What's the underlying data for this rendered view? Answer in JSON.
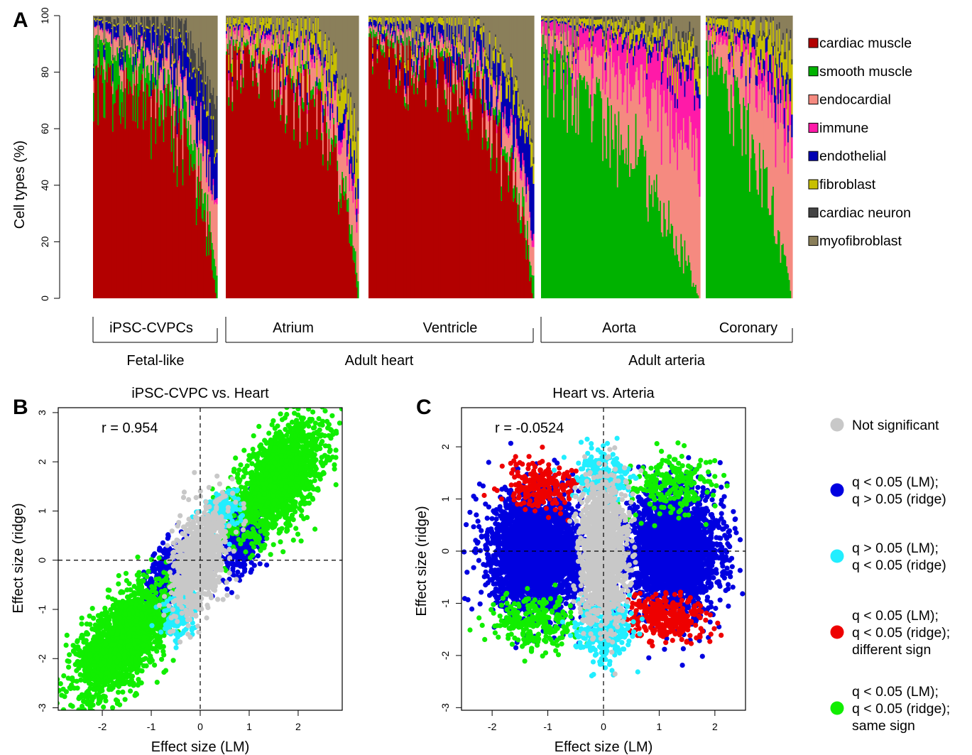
{
  "chart_data": [
    {
      "panel": "A",
      "type": "bar",
      "variant": "stacked-100",
      "title": "",
      "ylabel": "Cell types (%)",
      "xlabel": "",
      "ylim": [
        0,
        100
      ],
      "yticks": [
        0,
        20,
        40,
        60,
        80,
        100
      ],
      "legend_position": "right",
      "series": [
        {
          "name": "cardiac muscle",
          "color": "#b30000"
        },
        {
          "name": "smooth muscle",
          "color": "#00b200"
        },
        {
          "name": "endocardial",
          "color": "#f58a80"
        },
        {
          "name": "immune",
          "color": "#ff1aa8"
        },
        {
          "name": "endothelial",
          "color": "#0000b3"
        },
        {
          "name": "fibroblast",
          "color": "#c8c000"
        },
        {
          "name": "cardiac neuron",
          "color": "#444444"
        },
        {
          "name": "myofibroblast",
          "color": "#8a7f5a"
        }
      ],
      "groups": [
        {
          "label": "iPSC-CVPCs",
          "samples": 110,
          "cardiac_muscle_range": [
            80,
            0
          ],
          "smooth_muscle_range": [
            13,
            5
          ],
          "endocardial_range": [
            3,
            12
          ],
          "immune_range": [
            0.5,
            1
          ],
          "endothelial_range": [
            2,
            12
          ],
          "fibroblast_range": [
            0.5,
            1
          ],
          "cardiac_neuron_range": [
            0.8,
            8
          ]
        },
        {
          "label": "Atrium",
          "samples": 110,
          "cardiac_muscle_range": [
            87,
            0
          ],
          "smooth_muscle_range": [
            2,
            3
          ],
          "endocardial_range": [
            4,
            10
          ],
          "immune_range": [
            1.5,
            2.5
          ],
          "endothelial_range": [
            1,
            4
          ],
          "fibroblast_range": [
            3,
            8
          ],
          "cardiac_neuron_range": [
            0.3,
            0.8
          ]
        },
        {
          "label": "Ventricle",
          "samples": 140,
          "cardiac_muscle_range": [
            90,
            0
          ],
          "smooth_muscle_range": [
            2,
            3
          ],
          "endocardial_range": [
            1.5,
            8
          ],
          "immune_range": [
            0.5,
            2
          ],
          "endothelial_range": [
            2,
            10
          ],
          "fibroblast_range": [
            1.5,
            4
          ],
          "cardiac_neuron_range": [
            0.2,
            0.8
          ]
        },
        {
          "label": "Aorta",
          "samples": 130,
          "cardiac_muscle_range": [
            0,
            0
          ],
          "smooth_muscle_range": [
            87,
            0
          ],
          "endocardial_range": [
            4,
            40
          ],
          "immune_range": [
            4,
            20
          ],
          "endothelial_range": [
            0.5,
            4
          ],
          "fibroblast_range": [
            1,
            6
          ],
          "cardiac_neuron_range": [
            0.5,
            3
          ]
        },
        {
          "label": "Coronary",
          "samples": 70,
          "cardiac_muscle_range": [
            0,
            0
          ],
          "smooth_muscle_range": [
            85,
            0
          ],
          "endocardial_range": [
            4,
            40
          ],
          "immune_range": [
            2,
            10
          ],
          "endothelial_range": [
            1,
            6
          ],
          "fibroblast_range": [
            3,
            10
          ],
          "cardiac_neuron_range": [
            0.5,
            2
          ]
        }
      ],
      "group_axis": {
        "tier1": [
          {
            "label": "iPSC-CVPCs",
            "from": 0,
            "to": 0
          },
          {
            "label": "Atrium",
            "from": 1,
            "to": 2
          },
          {
            "label": "Ventricle",
            "from": 1,
            "to": 2
          },
          {
            "label": "Aorta",
            "from": 3,
            "to": 4
          },
          {
            "label": "Coronary",
            "from": 3,
            "to": 4
          }
        ],
        "tier2": [
          {
            "label": "Fetal-like"
          },
          {
            "label": "Adult heart"
          },
          {
            "label": "Adult arteria"
          }
        ]
      }
    },
    {
      "panel": "B",
      "type": "scatter",
      "title": "iPSC-CVPC vs. Heart",
      "xlabel": "Effect size (LM)",
      "ylabel": "Effect size (ridge)",
      "xlim": [
        -2.9,
        2.9
      ],
      "ylim": [
        -3.05,
        3.1
      ],
      "xticks": [
        -2,
        -1,
        0,
        1,
        2
      ],
      "yticks": [
        -3,
        -2,
        -1,
        0,
        1,
        2,
        3
      ],
      "annotation": "r = 0.954",
      "reference_lines": [
        {
          "axis": "x",
          "value": 0
        },
        {
          "axis": "y",
          "value": 0
        }
      ],
      "clusters": [
        {
          "category": "same sign",
          "center": [
            1.6,
            1.65
          ],
          "spread": [
            0.45,
            0.45
          ],
          "slope": 0.7,
          "n": 1800
        },
        {
          "category": "same sign",
          "center": [
            -1.6,
            -1.65
          ],
          "spread": [
            0.45,
            0.45
          ],
          "slope": 0.7,
          "n": 1800
        },
        {
          "category": "not significant",
          "center": [
            0.0,
            0.0
          ],
          "spread": [
            0.28,
            0.5
          ],
          "slope": 0.9,
          "n": 900
        },
        {
          "category": "lm only",
          "center": [
            -0.7,
            -0.4
          ],
          "spread": [
            0.22,
            0.35
          ],
          "slope": 0.9,
          "n": 400
        },
        {
          "category": "lm only",
          "center": [
            0.9,
            0.5
          ],
          "spread": [
            0.22,
            0.35
          ],
          "slope": 0.9,
          "n": 400
        },
        {
          "category": "ridge only",
          "center": [
            0.4,
            1.0
          ],
          "spread": [
            0.2,
            0.22
          ],
          "slope": 0.4,
          "n": 160
        },
        {
          "category": "ridge only",
          "center": [
            -0.4,
            -1.05
          ],
          "spread": [
            0.2,
            0.25
          ],
          "slope": 0.4,
          "n": 160
        }
      ]
    },
    {
      "panel": "C",
      "type": "scatter",
      "title": "Heart vs. Arteria",
      "xlabel": "Effect size (LM)",
      "ylabel": "Effect size (ridge)",
      "xlim": [
        -2.55,
        2.55
      ],
      "ylim": [
        -3.05,
        2.75
      ],
      "xticks": [
        -2,
        -1,
        0,
        1,
        2
      ],
      "yticks": [
        -3,
        -2,
        -1,
        0,
        1,
        2
      ],
      "annotation": "r = -0.0524",
      "reference_lines": [
        {
          "axis": "x",
          "value": 0
        },
        {
          "axis": "y",
          "value": 0
        }
      ],
      "clusters": [
        {
          "category": "lm only",
          "center": [
            -1.2,
            -0.05
          ],
          "spread": [
            0.4,
            0.55
          ],
          "slope": 0,
          "n": 3000
        },
        {
          "category": "lm only",
          "center": [
            1.25,
            0.0
          ],
          "spread": [
            0.4,
            0.55
          ],
          "slope": 0,
          "n": 3000
        },
        {
          "category": "not significant",
          "center": [
            0.0,
            0.0
          ],
          "spread": [
            0.2,
            0.65
          ],
          "slope": 0,
          "n": 1500
        },
        {
          "category": "ridge only",
          "center": [
            0.0,
            1.45
          ],
          "spread": [
            0.25,
            0.25
          ],
          "slope": 0,
          "n": 250
        },
        {
          "category": "ridge only",
          "center": [
            0.0,
            -1.5
          ],
          "spread": [
            0.25,
            0.3
          ],
          "slope": 0,
          "n": 300
        },
        {
          "category": "different sign",
          "center": [
            -1.1,
            1.25
          ],
          "spread": [
            0.35,
            0.22
          ],
          "slope": 0,
          "n": 250
        },
        {
          "category": "different sign",
          "center": [
            1.15,
            -1.3
          ],
          "spread": [
            0.35,
            0.22
          ],
          "slope": 0,
          "n": 300
        },
        {
          "category": "same sign",
          "center": [
            1.25,
            1.25
          ],
          "spread": [
            0.4,
            0.28
          ],
          "slope": 0,
          "n": 220
        },
        {
          "category": "same sign",
          "center": [
            -1.25,
            -1.35
          ],
          "spread": [
            0.4,
            0.28
          ],
          "slope": 0,
          "n": 260
        }
      ]
    }
  ],
  "panel_labels": [
    "A",
    "B",
    "C"
  ],
  "scatter_legend": [
    {
      "category": "not significant",
      "color": "#c8c8c8",
      "lines": [
        "Not significant"
      ]
    },
    {
      "category": "lm only",
      "color": "#0000e0",
      "lines": [
        "q < 0.05 (LM);",
        "q > 0.05 (ridge)"
      ]
    },
    {
      "category": "ridge only",
      "color": "#22eeff",
      "lines": [
        "q > 0.05 (LM);",
        "q < 0.05 (ridge)"
      ]
    },
    {
      "category": "different sign",
      "color": "#ee0000",
      "lines": [
        "q < 0.05 (LM);",
        "q < 0.05 (ridge);",
        "different sign"
      ]
    },
    {
      "category": "same sign",
      "color": "#11ee00",
      "lines": [
        "q < 0.05 (LM);",
        "q < 0.05 (ridge);",
        "same sign"
      ]
    }
  ]
}
